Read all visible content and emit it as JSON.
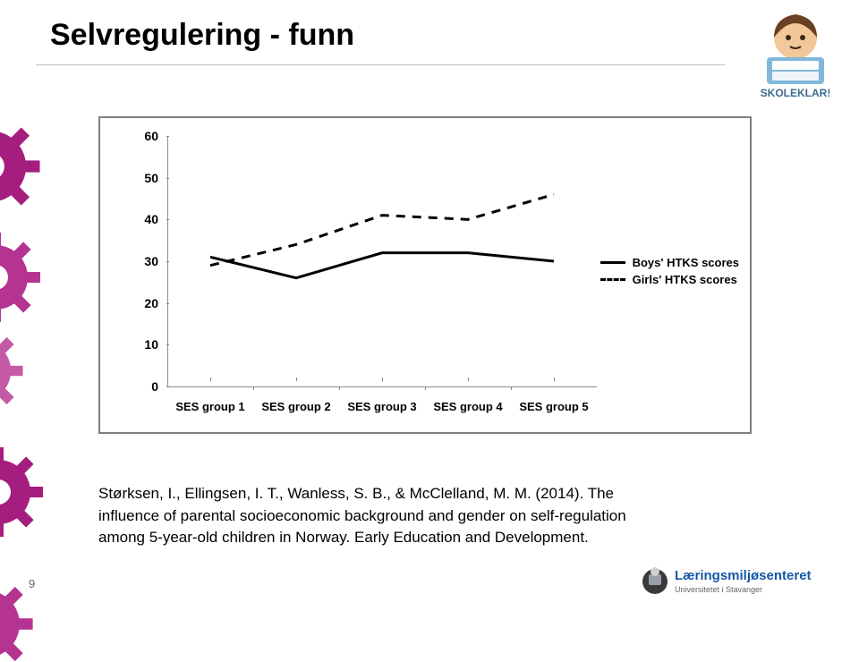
{
  "title": "Selvregulering - funn",
  "page_number": "9",
  "chart": {
    "type": "line",
    "xlim": [
      1,
      5
    ],
    "ylim": [
      0,
      60
    ],
    "ytick_step": 10,
    "yticks": [
      0,
      10,
      20,
      30,
      40,
      50,
      60
    ],
    "x_categories": [
      "SES group 1",
      "SES group 2",
      "SES group 3",
      "SES group 4",
      "SES group 5"
    ],
    "background_color": "#ffffff",
    "axis_color": "#888888",
    "tick_font_size": 13,
    "tick_font_weight": "bold",
    "line_width": 3,
    "series": [
      {
        "name": "Boys' HTKS scores",
        "color": "#000000",
        "dash": "solid",
        "values": [
          31,
          26,
          32,
          32,
          30
        ]
      },
      {
        "name": "Girls' HTKS scores",
        "color": "#000000",
        "dash": "dashed",
        "values": [
          29,
          34,
          41,
          40,
          46
        ]
      }
    ],
    "legend_position": "right"
  },
  "citation": {
    "authors": "Størksen, I., Ellingsen, I. T., Wanless, S. B., & McClelland, M. M. (2014).",
    "title_text": "The influence of parental socioeconomic background and gender on self-regulation among 5-year-old children in Norway.",
    "journal": "Early Education and Development."
  },
  "decor": {
    "gear_colors": [
      "#a51d7f",
      "#b63491",
      "#c45aa6"
    ],
    "title_underline_color": "#bfbfbf"
  },
  "logos": {
    "top_right_label": "SKOLEKLAR!",
    "bottom_right_label": "Læringsmiljøsenteret",
    "bottom_right_sub": "Universitetet i Stavanger"
  }
}
